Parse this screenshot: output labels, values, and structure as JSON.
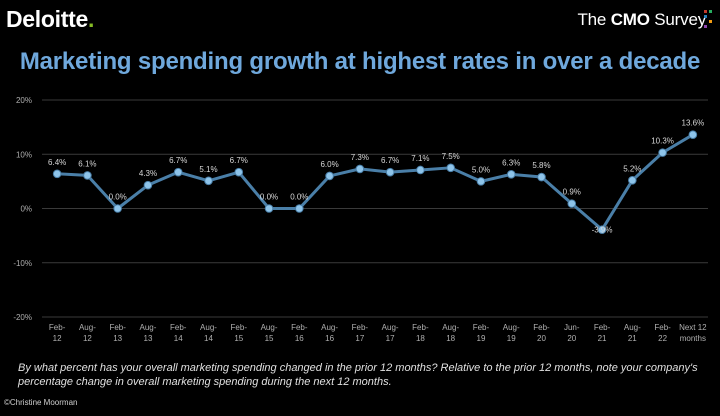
{
  "header": {
    "brand_name": "Deloitte",
    "brand_dot": ".",
    "survey_the": "The ",
    "survey_cmo": "CMO",
    "survey_name": " Survey",
    "survey_dot_colors": [
      "#c0392b",
      "#27ae60",
      "#2980b9",
      "#f39c12",
      "#8e44ad"
    ]
  },
  "footnote": "By what percent has your overall marketing spending changed in the prior 12 months? Relative to the prior 12 months, note your company's percentage change in overall marketing spending during the next 12 months.",
  "copyright": "©Christine  Moorman",
  "colors": {
    "title": "#6fa8dc",
    "line": "#4a7fa8",
    "marker": "#8ec4ea",
    "grid": "#3a3a3a",
    "axis_text": "#b0b0b0",
    "label_text": "#d8d8d8"
  },
  "chart_data": {
    "type": "line",
    "title": "Marketing spending growth at highest rates in over a decade",
    "xlabel": "",
    "ylabel": "",
    "ylim": [
      -20,
      20
    ],
    "yticks": [
      -20,
      -10,
      0,
      10,
      20
    ],
    "ytick_labels": [
      "-20%",
      "-10%",
      "0%",
      "10%",
      "20%"
    ],
    "grid": true,
    "categories": [
      [
        "Feb-",
        "12"
      ],
      [
        "Aug-",
        "12"
      ],
      [
        "Feb-",
        "13"
      ],
      [
        "Aug-",
        "13"
      ],
      [
        "Feb-",
        "14"
      ],
      [
        "Aug-",
        "14"
      ],
      [
        "Feb-",
        "15"
      ],
      [
        "Aug-",
        "15"
      ],
      [
        "Feb-",
        "16"
      ],
      [
        "Aug-",
        "16"
      ],
      [
        "Feb-",
        "17"
      ],
      [
        "Aug-",
        "17"
      ],
      [
        "Feb-",
        "18"
      ],
      [
        "Aug-",
        "18"
      ],
      [
        "Feb-",
        "19"
      ],
      [
        "Aug-",
        "19"
      ],
      [
        "Feb-",
        "20"
      ],
      [
        "Jun-",
        "20"
      ],
      [
        "Feb-",
        "21"
      ],
      [
        "Aug-",
        "21"
      ],
      [
        "Feb-",
        "22"
      ],
      [
        "Next 12",
        "months"
      ]
    ],
    "values": [
      6.4,
      6.1,
      0.0,
      4.3,
      6.7,
      5.1,
      6.7,
      0.0,
      0.0,
      6.0,
      7.3,
      6.7,
      7.1,
      7.5,
      5.0,
      6.3,
      5.8,
      0.9,
      -3.9,
      5.2,
      10.3,
      13.6
    ],
    "data_labels": [
      "6.4%",
      "6.1%",
      "0.0%",
      "4.3%",
      "6.7%",
      "5.1%",
      "6.7%",
      "0.0%",
      "0.0%",
      "6.0%",
      "7.3%",
      "6.7%",
      "7.1%",
      "7.5%",
      "5.0%",
      "6.3%",
      "5.8%",
      "0.9%",
      "-3.9%",
      "5.2%",
      "10.3%",
      "13.6%"
    ]
  }
}
